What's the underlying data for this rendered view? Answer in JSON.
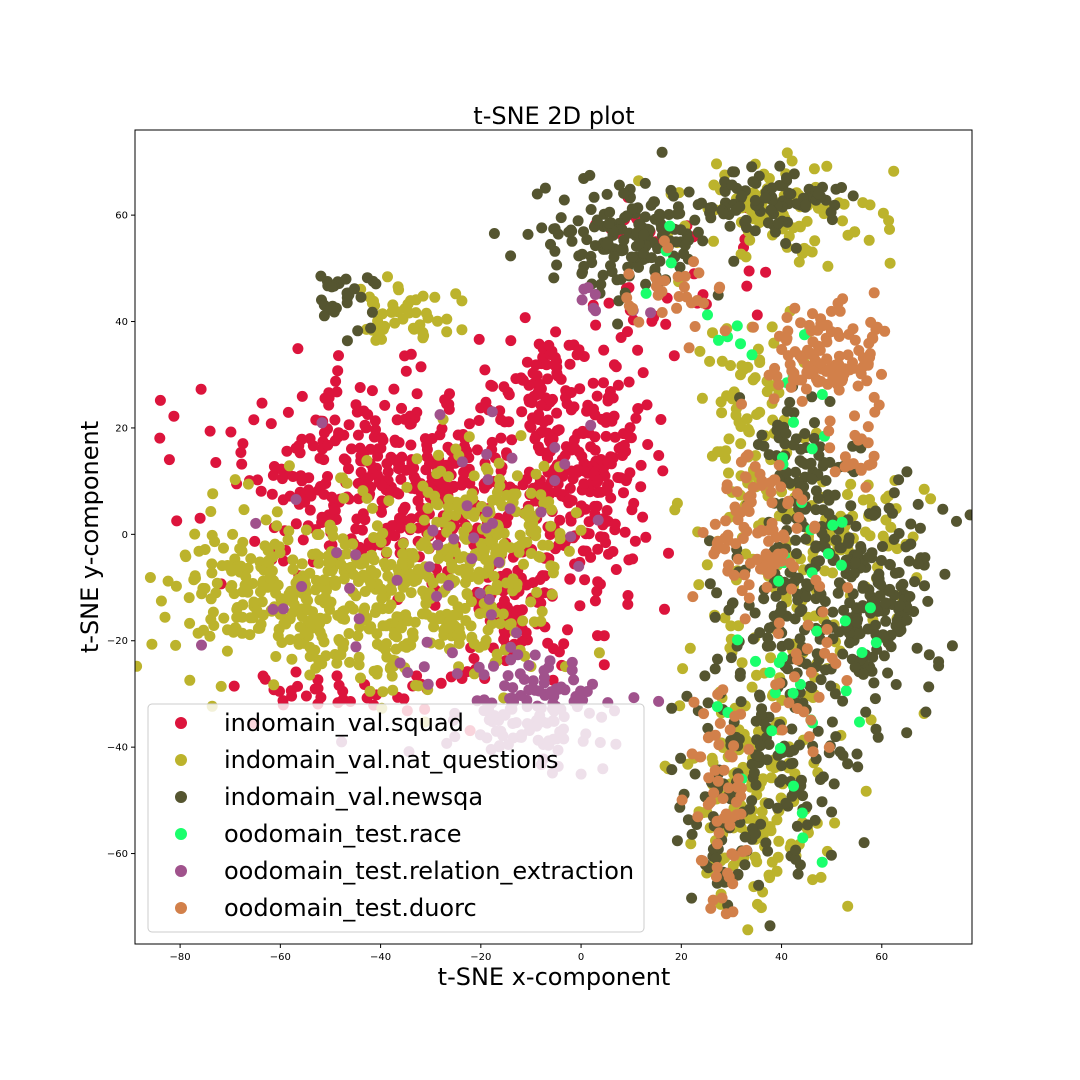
{
  "chart_data": {
    "type": "scatter",
    "title": "t-SNE 2D plot",
    "xlabel": "t-SNE x-component",
    "ylabel": "t-SNE y-component",
    "xlim": [
      -89,
      78
    ],
    "ylim": [
      -77,
      76
    ],
    "xticks": [
      -80,
      -60,
      -40,
      -20,
      0,
      20,
      40,
      60
    ],
    "yticks": [
      -60,
      -40,
      -20,
      0,
      20,
      40,
      60
    ],
    "grid": false,
    "legend_position": "lower-left",
    "series": [
      {
        "name": "indomain_val.squad",
        "color": "#dc143c",
        "clusters": [
          {
            "cx": -37,
            "cy": 10,
            "sx": 18,
            "sy": 9,
            "n": 430
          },
          {
            "cx": 0,
            "cy": 10,
            "sx": 7,
            "sy": 12,
            "n": 220
          },
          {
            "cx": -13,
            "cy": -15,
            "sx": 6,
            "sy": 5,
            "n": 80
          },
          {
            "cx": -8,
            "cy": 28,
            "sx": 7,
            "sy": 5,
            "n": 60
          },
          {
            "cx": -50,
            "cy": -30,
            "sx": 12,
            "sy": 3,
            "n": 40
          },
          {
            "cx": 18,
            "cy": 45,
            "sx": 10,
            "sy": 8,
            "n": 30
          },
          {
            "cx": 10,
            "cy": 58,
            "sx": 5,
            "sy": 3,
            "n": 10
          }
        ]
      },
      {
        "name": "indomain_val.nat_questions",
        "color": "#bcb32c",
        "clusters": [
          {
            "cx": -55,
            "cy": -12,
            "sx": 14,
            "sy": 8,
            "n": 320
          },
          {
            "cx": -28,
            "cy": -10,
            "sx": 12,
            "sy": 10,
            "n": 260
          },
          {
            "cx": -15,
            "cy": 2,
            "sx": 8,
            "sy": 6,
            "n": 90
          },
          {
            "cx": -35,
            "cy": 42,
            "sx": 6,
            "sy": 2.5,
            "n": 45
          },
          {
            "cx": 38,
            "cy": 60,
            "sx": 10,
            "sy": 5,
            "n": 100
          },
          {
            "cx": 33,
            "cy": 25,
            "sx": 5,
            "sy": 10,
            "n": 70
          },
          {
            "cx": 35,
            "cy": -50,
            "sx": 7,
            "sy": 10,
            "n": 150
          },
          {
            "cx": 42,
            "cy": -10,
            "sx": 10,
            "sy": 15,
            "n": 110
          },
          {
            "cx": 60,
            "cy": 0,
            "sx": 6,
            "sy": 6,
            "n": 40
          }
        ]
      },
      {
        "name": "indomain_val.newsqa",
        "color": "#555530",
        "clusters": [
          {
            "cx": 10,
            "cy": 55,
            "sx": 9,
            "sy": 5,
            "n": 160
          },
          {
            "cx": 38,
            "cy": 62,
            "sx": 8,
            "sy": 3,
            "n": 90
          },
          {
            "cx": -47,
            "cy": 44,
            "sx": 3,
            "sy": 2.5,
            "n": 30
          },
          {
            "cx": 50,
            "cy": -10,
            "sx": 10,
            "sy": 12,
            "n": 220
          },
          {
            "cx": 62,
            "cy": -12,
            "sx": 5,
            "sy": 8,
            "n": 80
          },
          {
            "cx": 38,
            "cy": -40,
            "sx": 8,
            "sy": 12,
            "n": 140
          },
          {
            "cx": 45,
            "cy": 15,
            "sx": 5,
            "sy": 7,
            "n": 60
          },
          {
            "cx": 28,
            "cy": -55,
            "sx": 4,
            "sy": 7,
            "n": 40
          }
        ]
      },
      {
        "name": "oodomain_test.race",
        "color": "#1aff6c",
        "clusters": [
          {
            "cx": 48,
            "cy": 0,
            "sx": 6,
            "sy": 16,
            "n": 28
          },
          {
            "cx": 38,
            "cy": -40,
            "sx": 8,
            "sy": 10,
            "n": 18
          },
          {
            "cx": 30,
            "cy": 38,
            "sx": 4,
            "sy": 3,
            "n": 6
          },
          {
            "cx": 13,
            "cy": 53,
            "sx": 4,
            "sy": 4,
            "n": 4
          }
        ]
      },
      {
        "name": "oodomain_test.relation_extraction",
        "color": "#a0528c",
        "clusters": [
          {
            "cx": -10,
            "cy": -34,
            "sx": 9,
            "sy": 5,
            "n": 130
          },
          {
            "cx": -18,
            "cy": 6,
            "sx": 12,
            "sy": 10,
            "n": 30
          },
          {
            "cx": -45,
            "cy": -12,
            "sx": 15,
            "sy": 10,
            "n": 22
          },
          {
            "cx": 4,
            "cy": 44,
            "sx": 4,
            "sy": 3,
            "n": 8
          }
        ]
      },
      {
        "name": "oodomain_test.duorc",
        "color": "#d2804a",
        "clusters": [
          {
            "cx": 50,
            "cy": 33,
            "sx": 6,
            "sy": 5,
            "n": 110
          },
          {
            "cx": 35,
            "cy": 0,
            "sx": 5,
            "sy": 8,
            "n": 90
          },
          {
            "cx": 28,
            "cy": -50,
            "sx": 3,
            "sy": 12,
            "n": 60
          },
          {
            "cx": 18,
            "cy": 45,
            "sx": 5,
            "sy": 4,
            "n": 30
          },
          {
            "cx": 55,
            "cy": 15,
            "sx": 4,
            "sy": 4,
            "n": 20
          },
          {
            "cx": 45,
            "cy": -25,
            "sx": 5,
            "sy": 8,
            "n": 30
          }
        ]
      }
    ]
  }
}
